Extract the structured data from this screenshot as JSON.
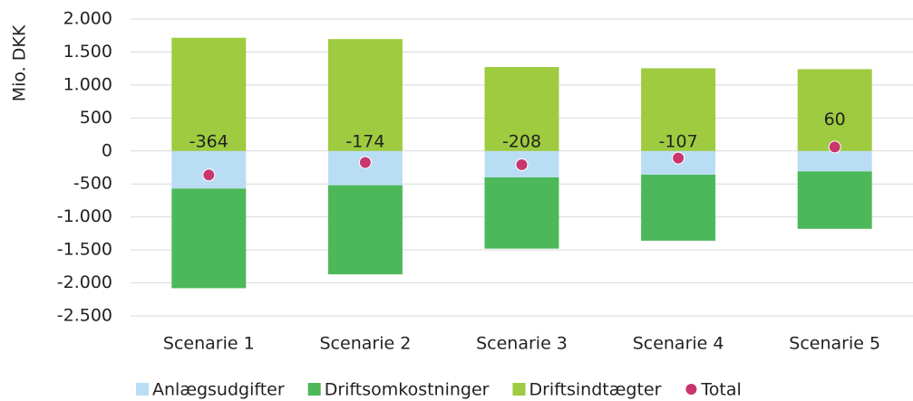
{
  "chart_data": {
    "type": "bar",
    "stacked": true,
    "y_label": "Mio. DKK",
    "categories": [
      "Scenarie 1",
      "Scenarie 2",
      "Scenarie 3",
      "Scenarie 4",
      "Scenarie 5"
    ],
    "series": [
      {
        "name": "Anlægsudgifter",
        "color": "#b9def4",
        "type": "bar",
        "values": [
          -570,
          -520,
          -400,
          -360,
          -310
        ]
      },
      {
        "name": "Driftsomkostninger",
        "color": "#4db85a",
        "type": "bar",
        "values": [
          -1510,
          -1350,
          -1080,
          -1000,
          -870
        ]
      },
      {
        "name": "Driftsindtægter",
        "color": "#9ecb3f",
        "type": "bar",
        "values": [
          1716,
          1696,
          1272,
          1253,
          1240
        ]
      },
      {
        "name": "Total",
        "color": "#c8356f",
        "type": "scatter",
        "values": [
          -364,
          -174,
          -208,
          -107,
          60
        ]
      }
    ],
    "ylim": [
      -2500,
      2000
    ],
    "yticks": [
      {
        "value": 2000,
        "label": "2.000"
      },
      {
        "value": 1500,
        "label": "1.500"
      },
      {
        "value": 1000,
        "label": "1.000"
      },
      500,
      0,
      -500,
      {
        "value": -1000,
        "label": "-1.000"
      },
      {
        "value": -1500,
        "label": "-1.500"
      },
      {
        "value": -2000,
        "label": "-2.000"
      },
      {
        "value": -2500,
        "label": "-2.500"
      }
    ],
    "grid": true,
    "legend": "bottom"
  }
}
